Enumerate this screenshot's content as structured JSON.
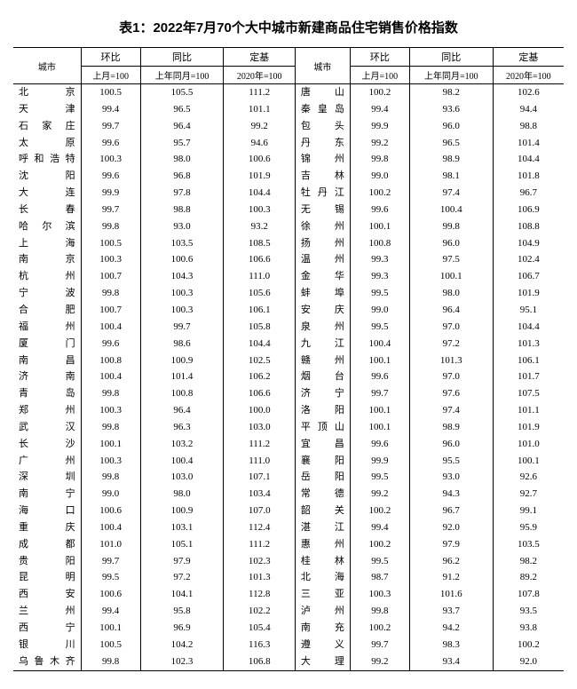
{
  "title": "表1：2022年7月70个大中城市新建商品住宅销售价格指数",
  "header": {
    "city": "城市",
    "group1": "环比",
    "group2": "同比",
    "group3": "定基",
    "sub1": "上月=100",
    "sub2": "上年同月=100",
    "sub3": "2020年=100"
  },
  "rows": [
    {
      "cityA": "北　京",
      "a1": "100.5",
      "a2": "105.5",
      "a3": "111.2",
      "cityB": "唐　山",
      "b1": "100.2",
      "b2": "98.2",
      "b3": "102.6"
    },
    {
      "cityA": "天　津",
      "a1": "99.4",
      "a2": "96.5",
      "a3": "101.1",
      "cityB": "秦皇岛",
      "b1": "99.4",
      "b2": "93.6",
      "b3": "94.4"
    },
    {
      "cityA": "石家庄",
      "a1": "99.7",
      "a2": "96.4",
      "a3": "99.2",
      "cityB": "包　头",
      "b1": "99.9",
      "b2": "96.0",
      "b3": "98.8"
    },
    {
      "cityA": "太　原",
      "a1": "99.6",
      "a2": "95.7",
      "a3": "94.6",
      "cityB": "丹　东",
      "b1": "99.2",
      "b2": "96.5",
      "b3": "101.4"
    },
    {
      "cityA": "呼和浩特",
      "a1": "100.3",
      "a2": "98.0",
      "a3": "100.6",
      "cityB": "锦　州",
      "b1": "99.8",
      "b2": "98.9",
      "b3": "104.4"
    },
    {
      "cityA": "沈　阳",
      "a1": "99.6",
      "a2": "96.8",
      "a3": "101.9",
      "cityB": "吉　林",
      "b1": "99.0",
      "b2": "98.1",
      "b3": "101.8"
    },
    {
      "cityA": "大　连",
      "a1": "99.9",
      "a2": "97.8",
      "a3": "104.4",
      "cityB": "牡丹江",
      "b1": "100.2",
      "b2": "97.4",
      "b3": "96.7"
    },
    {
      "cityA": "长　春",
      "a1": "99.7",
      "a2": "98.8",
      "a3": "100.3",
      "cityB": "无　锡",
      "b1": "99.6",
      "b2": "100.4",
      "b3": "106.9"
    },
    {
      "cityA": "哈尔滨",
      "a1": "99.8",
      "a2": "93.0",
      "a3": "93.2",
      "cityB": "徐　州",
      "b1": "100.1",
      "b2": "99.8",
      "b3": "108.8"
    },
    {
      "cityA": "上　海",
      "a1": "100.5",
      "a2": "103.5",
      "a3": "108.5",
      "cityB": "扬　州",
      "b1": "100.8",
      "b2": "96.0",
      "b3": "104.9"
    },
    {
      "cityA": "南　京",
      "a1": "100.3",
      "a2": "100.6",
      "a3": "106.6",
      "cityB": "温　州",
      "b1": "99.3",
      "b2": "97.5",
      "b3": "102.4"
    },
    {
      "cityA": "杭　州",
      "a1": "100.7",
      "a2": "104.3",
      "a3": "111.0",
      "cityB": "金　华",
      "b1": "99.3",
      "b2": "100.1",
      "b3": "106.7"
    },
    {
      "cityA": "宁　波",
      "a1": "99.8",
      "a2": "100.3",
      "a3": "105.6",
      "cityB": "蚌　埠",
      "b1": "99.5",
      "b2": "98.0",
      "b3": "101.9"
    },
    {
      "cityA": "合　肥",
      "a1": "100.7",
      "a2": "100.3",
      "a3": "106.1",
      "cityB": "安　庆",
      "b1": "99.0",
      "b2": "96.4",
      "b3": "95.1"
    },
    {
      "cityA": "福　州",
      "a1": "100.4",
      "a2": "99.7",
      "a3": "105.8",
      "cityB": "泉　州",
      "b1": "99.5",
      "b2": "97.0",
      "b3": "104.4"
    },
    {
      "cityA": "厦　门",
      "a1": "99.6",
      "a2": "98.6",
      "a3": "104.4",
      "cityB": "九　江",
      "b1": "100.4",
      "b2": "97.2",
      "b3": "101.3"
    },
    {
      "cityA": "南　昌",
      "a1": "100.8",
      "a2": "100.9",
      "a3": "102.5",
      "cityB": "赣　州",
      "b1": "100.1",
      "b2": "101.3",
      "b3": "106.1"
    },
    {
      "cityA": "济　南",
      "a1": "100.4",
      "a2": "101.4",
      "a3": "106.2",
      "cityB": "烟　台",
      "b1": "99.6",
      "b2": "97.0",
      "b3": "101.7"
    },
    {
      "cityA": "青　岛",
      "a1": "99.8",
      "a2": "100.8",
      "a3": "106.6",
      "cityB": "济　宁",
      "b1": "99.7",
      "b2": "97.6",
      "b3": "107.5"
    },
    {
      "cityA": "郑　州",
      "a1": "100.3",
      "a2": "96.4",
      "a3": "100.0",
      "cityB": "洛　阳",
      "b1": "100.1",
      "b2": "97.4",
      "b3": "101.1"
    },
    {
      "cityA": "武　汉",
      "a1": "99.8",
      "a2": "96.3",
      "a3": "103.0",
      "cityB": "平顶山",
      "b1": "100.1",
      "b2": "98.9",
      "b3": "101.9"
    },
    {
      "cityA": "长　沙",
      "a1": "100.1",
      "a2": "103.2",
      "a3": "111.2",
      "cityB": "宜　昌",
      "b1": "99.6",
      "b2": "96.0",
      "b3": "101.0"
    },
    {
      "cityA": "广　州",
      "a1": "100.3",
      "a2": "100.4",
      "a3": "111.0",
      "cityB": "襄　阳",
      "b1": "99.9",
      "b2": "95.5",
      "b3": "100.1"
    },
    {
      "cityA": "深　圳",
      "a1": "99.8",
      "a2": "103.0",
      "a3": "107.1",
      "cityB": "岳　阳",
      "b1": "99.5",
      "b2": "93.0",
      "b3": "92.6"
    },
    {
      "cityA": "南　宁",
      "a1": "99.0",
      "a2": "98.0",
      "a3": "103.4",
      "cityB": "常　德",
      "b1": "99.2",
      "b2": "94.3",
      "b3": "92.7"
    },
    {
      "cityA": "海　口",
      "a1": "100.6",
      "a2": "100.9",
      "a3": "107.0",
      "cityB": "韶　关",
      "b1": "100.2",
      "b2": "96.7",
      "b3": "99.1"
    },
    {
      "cityA": "重　庆",
      "a1": "100.4",
      "a2": "103.1",
      "a3": "112.4",
      "cityB": "湛　江",
      "b1": "99.4",
      "b2": "92.0",
      "b3": "95.9"
    },
    {
      "cityA": "成　都",
      "a1": "101.0",
      "a2": "105.1",
      "a3": "111.2",
      "cityB": "惠　州",
      "b1": "100.2",
      "b2": "97.9",
      "b3": "103.5"
    },
    {
      "cityA": "贵　阳",
      "a1": "99.7",
      "a2": "97.9",
      "a3": "102.3",
      "cityB": "桂　林",
      "b1": "99.5",
      "b2": "96.2",
      "b3": "98.2"
    },
    {
      "cityA": "昆　明",
      "a1": "99.5",
      "a2": "97.2",
      "a3": "101.3",
      "cityB": "北　海",
      "b1": "98.7",
      "b2": "91.2",
      "b3": "89.2"
    },
    {
      "cityA": "西　安",
      "a1": "100.6",
      "a2": "104.1",
      "a3": "112.8",
      "cityB": "三　亚",
      "b1": "100.3",
      "b2": "101.6",
      "b3": "107.8"
    },
    {
      "cityA": "兰　州",
      "a1": "99.4",
      "a2": "95.8",
      "a3": "102.2",
      "cityB": "泸　州",
      "b1": "99.8",
      "b2": "93.7",
      "b3": "93.5"
    },
    {
      "cityA": "西　宁",
      "a1": "100.1",
      "a2": "96.9",
      "a3": "105.4",
      "cityB": "南　充",
      "b1": "100.2",
      "b2": "94.2",
      "b3": "93.8"
    },
    {
      "cityA": "银　川",
      "a1": "100.5",
      "a2": "104.2",
      "a3": "116.3",
      "cityB": "遵　义",
      "b1": "99.7",
      "b2": "98.3",
      "b3": "100.2"
    },
    {
      "cityA": "乌鲁木齐",
      "a1": "99.8",
      "a2": "102.3",
      "a3": "106.8",
      "cityB": "大　理",
      "b1": "99.2",
      "b2": "93.4",
      "b3": "92.0"
    }
  ]
}
